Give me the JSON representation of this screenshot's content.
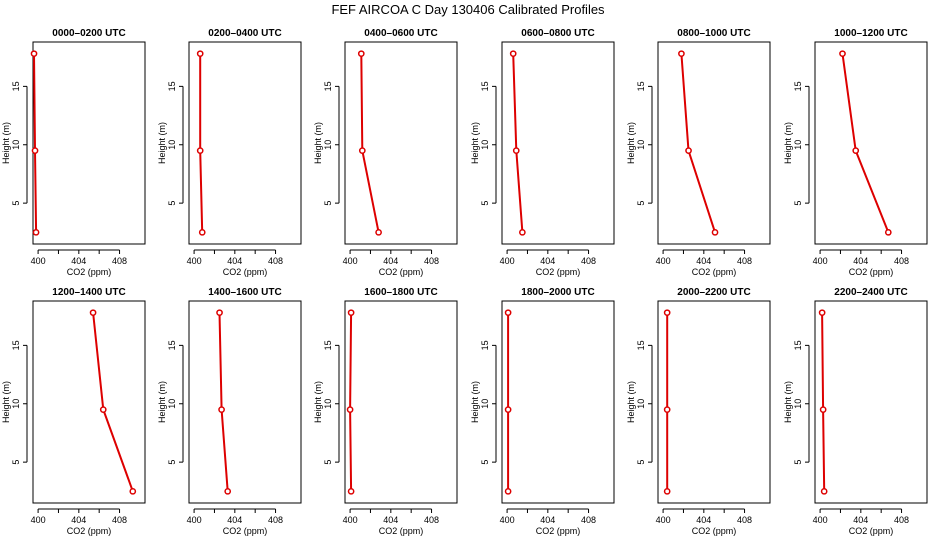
{
  "title": "FEF AIRCOA C  Day 130406  Calibrated Profiles",
  "chart_data": [
    {
      "type": "line",
      "title": "0000–0200 UTC",
      "xlabel": "CO2 (ppm)",
      "ylabel": "Height (m)",
      "xlim": [
        399.5,
        410.5
      ],
      "ylim": [
        1.5,
        18.8
      ],
      "xticks": [
        400,
        404,
        408
      ],
      "yticks": [
        5,
        10,
        15
      ],
      "series": [
        {
          "name": "profile",
          "co2": [
            399.8,
            399.7,
            399.6
          ],
          "height": [
            2.5,
            9.5,
            17.8
          ]
        }
      ]
    },
    {
      "type": "line",
      "title": "0200–0400 UTC",
      "xlabel": "CO2 (ppm)",
      "ylabel": "Height (m)",
      "xlim": [
        399.5,
        410.5
      ],
      "ylim": [
        1.5,
        18.8
      ],
      "xticks": [
        400,
        404,
        408
      ],
      "yticks": [
        5,
        10,
        15
      ],
      "series": [
        {
          "name": "profile",
          "co2": [
            400.8,
            400.6,
            400.6
          ],
          "height": [
            2.5,
            9.5,
            17.8
          ]
        }
      ]
    },
    {
      "type": "line",
      "title": "0400–0600 UTC",
      "xlabel": "CO2 (ppm)",
      "ylabel": "Height (m)",
      "xlim": [
        399.5,
        410.5
      ],
      "ylim": [
        1.5,
        18.8
      ],
      "xticks": [
        400,
        404,
        408
      ],
      "yticks": [
        5,
        10,
        15
      ],
      "series": [
        {
          "name": "profile",
          "co2": [
            402.8,
            401.2,
            401.1
          ],
          "height": [
            2.5,
            9.5,
            17.8
          ]
        }
      ]
    },
    {
      "type": "line",
      "title": "0600–0800 UTC",
      "xlabel": "CO2 (ppm)",
      "ylabel": "Height (m)",
      "xlim": [
        399.5,
        410.5
      ],
      "ylim": [
        1.5,
        18.8
      ],
      "xticks": [
        400,
        404,
        408
      ],
      "yticks": [
        5,
        10,
        15
      ],
      "series": [
        {
          "name": "profile",
          "co2": [
            401.5,
            400.9,
            400.6
          ],
          "height": [
            2.5,
            9.5,
            17.8
          ]
        }
      ]
    },
    {
      "type": "line",
      "title": "0800–1000 UTC",
      "xlabel": "CO2 (ppm)",
      "ylabel": "Height (m)",
      "xlim": [
        399.5,
        410.5
      ],
      "ylim": [
        1.5,
        18.8
      ],
      "xticks": [
        400,
        404,
        408
      ],
      "yticks": [
        5,
        10,
        15
      ],
      "series": [
        {
          "name": "profile",
          "co2": [
            405.1,
            402.5,
            401.8
          ],
          "height": [
            2.5,
            9.5,
            17.8
          ]
        }
      ]
    },
    {
      "type": "line",
      "title": "1000–1200 UTC",
      "xlabel": "CO2 (ppm)",
      "ylabel": "Height (m)",
      "xlim": [
        399.5,
        410.5
      ],
      "ylim": [
        1.5,
        18.8
      ],
      "xticks": [
        400,
        404,
        408
      ],
      "yticks": [
        5,
        10,
        15
      ],
      "series": [
        {
          "name": "profile",
          "co2": [
            406.7,
            403.5,
            402.2
          ],
          "height": [
            2.5,
            9.5,
            17.8
          ]
        }
      ]
    },
    {
      "type": "line",
      "title": "1200–1400 UTC",
      "xlabel": "CO2 (ppm)",
      "ylabel": "Height (m)",
      "xlim": [
        399.5,
        410.5
      ],
      "ylim": [
        1.5,
        18.8
      ],
      "xticks": [
        400,
        404,
        408
      ],
      "yticks": [
        5,
        10,
        15
      ],
      "series": [
        {
          "name": "profile",
          "co2": [
            409.3,
            406.4,
            405.4
          ],
          "height": [
            2.5,
            9.5,
            17.8
          ]
        }
      ]
    },
    {
      "type": "line",
      "title": "1400–1600 UTC",
      "xlabel": "CO2 (ppm)",
      "ylabel": "Height (m)",
      "xlim": [
        399.5,
        410.5
      ],
      "ylim": [
        1.5,
        18.8
      ],
      "xticks": [
        400,
        404,
        408
      ],
      "yticks": [
        5,
        10,
        15
      ],
      "series": [
        {
          "name": "profile",
          "co2": [
            403.3,
            402.7,
            402.5
          ],
          "height": [
            2.5,
            9.5,
            17.8
          ]
        }
      ]
    },
    {
      "type": "line",
      "title": "1600–1800 UTC",
      "xlabel": "CO2 (ppm)",
      "ylabel": "Height (m)",
      "xlim": [
        399.5,
        410.5
      ],
      "ylim": [
        1.5,
        18.8
      ],
      "xticks": [
        400,
        404,
        408
      ],
      "yticks": [
        5,
        10,
        15
      ],
      "series": [
        {
          "name": "profile",
          "co2": [
            400.1,
            400.0,
            400.1
          ],
          "height": [
            2.5,
            9.5,
            17.8
          ]
        }
      ]
    },
    {
      "type": "line",
      "title": "1800–2000 UTC",
      "xlabel": "CO2 (ppm)",
      "ylabel": "Height (m)",
      "xlim": [
        399.5,
        410.5
      ],
      "ylim": [
        1.5,
        18.8
      ],
      "xticks": [
        400,
        404,
        408
      ],
      "yticks": [
        5,
        10,
        15
      ],
      "series": [
        {
          "name": "profile",
          "co2": [
            400.1,
            400.1,
            400.1
          ],
          "height": [
            2.5,
            9.5,
            17.8
          ]
        }
      ]
    },
    {
      "type": "line",
      "title": "2000–2200 UTC",
      "xlabel": "CO2 (ppm)",
      "ylabel": "Height (m)",
      "xlim": [
        399.5,
        410.5
      ],
      "ylim": [
        1.5,
        18.8
      ],
      "xticks": [
        400,
        404,
        408
      ],
      "yticks": [
        5,
        10,
        15
      ],
      "series": [
        {
          "name": "profile",
          "co2": [
            400.4,
            400.4,
            400.4
          ],
          "height": [
            2.5,
            9.5,
            17.8
          ]
        }
      ]
    },
    {
      "type": "line",
      "title": "2200–2400 UTC",
      "xlabel": "CO2 (ppm)",
      "ylabel": "Height (m)",
      "xlim": [
        399.5,
        410.5
      ],
      "ylim": [
        1.5,
        18.8
      ],
      "xticks": [
        400,
        404,
        408
      ],
      "yticks": [
        5,
        10,
        15
      ],
      "series": [
        {
          "name": "profile",
          "co2": [
            400.4,
            400.3,
            400.2
          ],
          "height": [
            2.5,
            9.5,
            17.8
          ]
        }
      ]
    }
  ]
}
